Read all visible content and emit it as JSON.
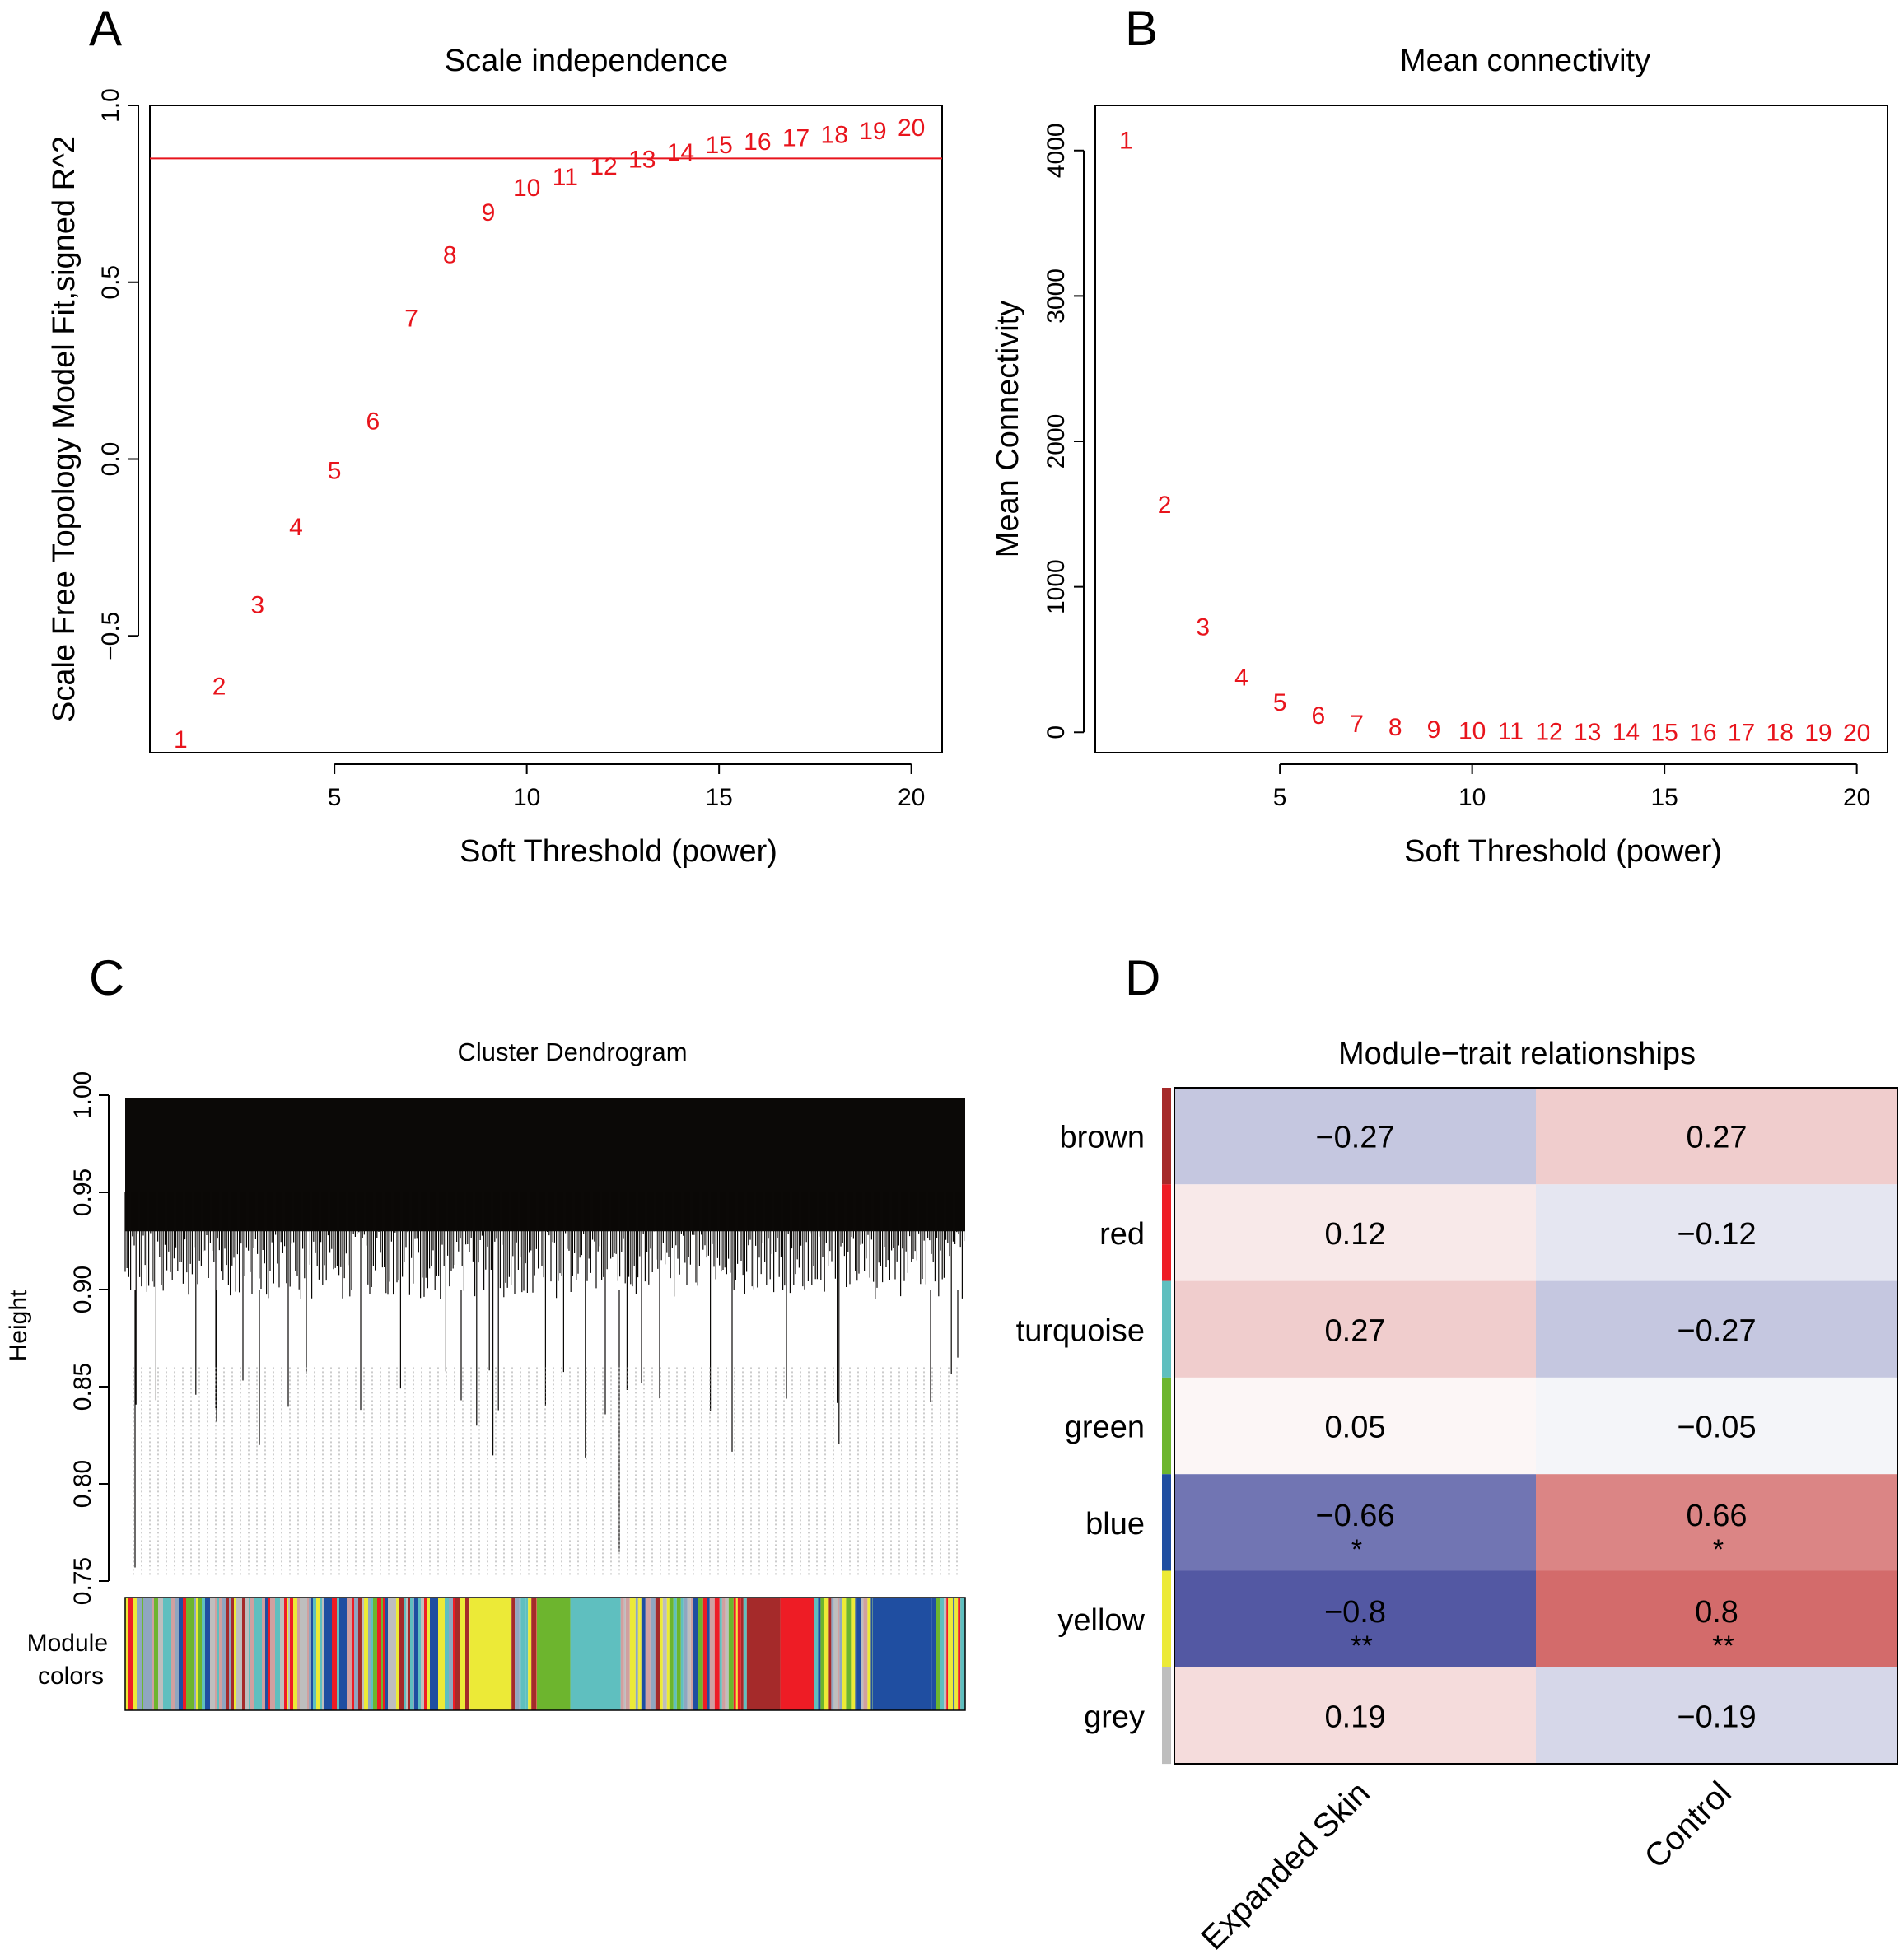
{
  "panel_labels": [
    "A",
    "B",
    "C",
    "D"
  ],
  "colors": {
    "point_red": "#e8141c",
    "line_red": "#e8141c",
    "axis": "#000000",
    "module": {
      "brown": "#a52a2a",
      "red": "#ee1c25",
      "turquoise": "#5fbfbf",
      "green": "#6db52e",
      "blue": "#1f4ea1",
      "yellow": "#ecea37",
      "grey": "#bebebe"
    }
  },
  "chart_data": [
    {
      "id": "A",
      "type": "scatter",
      "title": "Scale independence",
      "xlabel": "Soft Threshold (power)",
      "ylabel": "Scale Free Topology Model Fit,signed R^2",
      "x": [
        1,
        2,
        3,
        4,
        5,
        6,
        7,
        8,
        9,
        10,
        11,
        12,
        13,
        14,
        15,
        16,
        17,
        18,
        19,
        20
      ],
      "y": [
        -0.79,
        -0.64,
        -0.41,
        -0.19,
        -0.03,
        0.11,
        0.4,
        0.58,
        0.7,
        0.77,
        0.8,
        0.83,
        0.85,
        0.87,
        0.89,
        0.9,
        0.91,
        0.92,
        0.93,
        0.94
      ],
      "point_labels": [
        "1",
        "2",
        "3",
        "4",
        "5",
        "6",
        "7",
        "8",
        "9",
        "10",
        "11",
        "12",
        "13",
        "14",
        "15",
        "16",
        "17",
        "18",
        "19",
        "20"
      ],
      "xlim": [
        0.2,
        20.8
      ],
      "ylim": [
        -0.83,
        1.0
      ],
      "xticks": [
        5,
        10,
        15,
        20
      ],
      "xtick_labels": [
        "5",
        "10",
        "15",
        "20"
      ],
      "yticks": [
        -0.5,
        0.0,
        0.5,
        1.0
      ],
      "ytick_labels": [
        "−0.5",
        "0.0",
        "0.5",
        "1.0"
      ],
      "hline": 0.85
    },
    {
      "id": "B",
      "type": "scatter",
      "title": "Mean connectivity",
      "xlabel": "Soft Threshold (power)",
      "ylabel": "Mean Connectivity",
      "x": [
        1,
        2,
        3,
        4,
        5,
        6,
        7,
        8,
        9,
        10,
        11,
        12,
        13,
        14,
        15,
        16,
        17,
        18,
        19,
        20
      ],
      "y": [
        4075,
        1570,
        730,
        385,
        210,
        120,
        65,
        40,
        25,
        15,
        12,
        10,
        8,
        6,
        5,
        4,
        3,
        3,
        2,
        2
      ],
      "point_labels": [
        "1",
        "2",
        "3",
        "4",
        "5",
        "6",
        "7",
        "8",
        "9",
        "10",
        "11",
        "12",
        "13",
        "14",
        "15",
        "16",
        "17",
        "18",
        "19",
        "20"
      ],
      "xlim": [
        0.2,
        20.8
      ],
      "ylim": [
        -140,
        4310
      ],
      "xticks": [
        5,
        10,
        15,
        20
      ],
      "xtick_labels": [
        "5",
        "10",
        "15",
        "20"
      ],
      "yticks": [
        0,
        1000,
        2000,
        3000,
        4000
      ],
      "ytick_labels": [
        "0",
        "1000",
        "2000",
        "3000",
        "4000"
      ]
    },
    {
      "id": "C",
      "type": "dendrogram",
      "title": "Cluster Dendrogram",
      "ylabel": "Height",
      "ylim": [
        0.75,
        1.0
      ],
      "yticks": [
        0.75,
        0.8,
        0.85,
        0.9,
        0.95,
        1.0
      ],
      "ytick_labels": [
        "0.75",
        "0.80",
        "0.85",
        "0.90",
        "0.95",
        "1.00"
      ],
      "module_label": "Module colors",
      "module_blocks": [
        {
          "color": "mixed",
          "width": 0.41
        },
        {
          "color": "yellow",
          "width": 0.05
        },
        {
          "color": "mixed",
          "width": 0.03
        },
        {
          "color": "green",
          "width": 0.04
        },
        {
          "color": "turquoise",
          "width": 0.06
        },
        {
          "color": "mixed",
          "width": 0.15
        },
        {
          "color": "brown",
          "width": 0.04
        },
        {
          "color": "red",
          "width": 0.04
        },
        {
          "color": "mixed",
          "width": 0.07
        },
        {
          "color": "blue",
          "width": 0.07
        },
        {
          "color": "mixed",
          "width": 0.04
        }
      ]
    },
    {
      "id": "D",
      "type": "heatmap",
      "title": "Module−trait relationships",
      "rows": [
        "brown",
        "red",
        "turquoise",
        "green",
        "blue",
        "yellow",
        "grey"
      ],
      "columns": [
        "Expanded Skin",
        "Control"
      ],
      "values": [
        [
          -0.27,
          0.27
        ],
        [
          0.12,
          -0.12
        ],
        [
          0.27,
          -0.27
        ],
        [
          0.05,
          -0.05
        ],
        [
          -0.66,
          0.66
        ],
        [
          -0.8,
          0.8
        ],
        [
          0.19,
          -0.19
        ]
      ],
      "cell_text": [
        [
          "−0.27",
          "0.27"
        ],
        [
          "0.12",
          "−0.12"
        ],
        [
          "0.27",
          "−0.27"
        ],
        [
          "0.05",
          "−0.05"
        ],
        [
          "−0.66",
          "0.66"
        ],
        [
          "−0.8",
          "0.8"
        ],
        [
          "0.19",
          "−0.19"
        ]
      ],
      "significance": [
        [
          "",
          ""
        ],
        [
          "",
          ""
        ],
        [
          "",
          ""
        ],
        [
          "",
          ""
        ],
        [
          "*",
          "*"
        ],
        [
          "**",
          "**"
        ],
        [
          "",
          ""
        ]
      ]
    }
  ]
}
